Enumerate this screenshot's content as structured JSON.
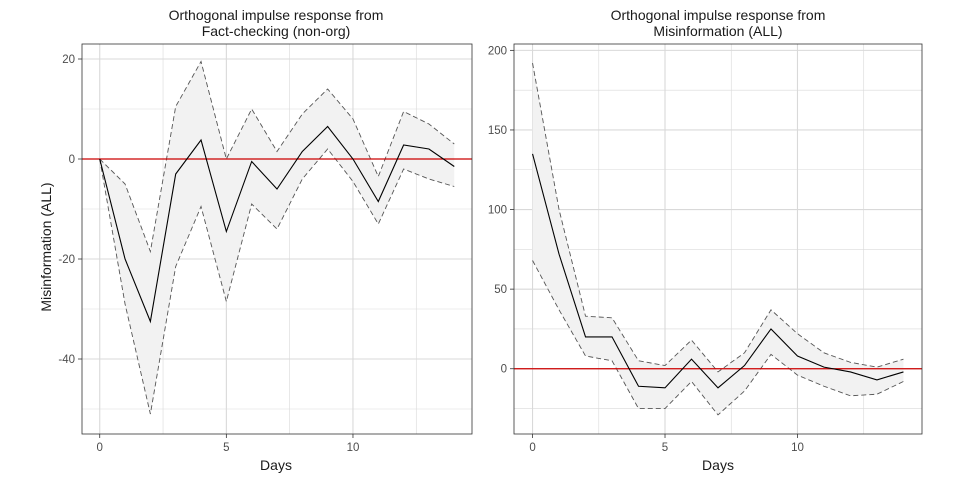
{
  "chart_data": [
    {
      "type": "line",
      "title_lines": [
        "Orthogonal impulse response from",
        "Fact-checking  (non-org)"
      ],
      "xlabel": "Days",
      "ylabel": "Misinformation (ALL)",
      "xlim": [
        -0.7,
        14.7
      ],
      "ylim": [
        -55,
        23
      ],
      "x_ticks": [
        0,
        5,
        10
      ],
      "y_ticks": [
        -40,
        -20,
        0,
        20
      ],
      "y_tick_labels": [
        "-40",
        "-20",
        "0",
        "20"
      ],
      "x": [
        0,
        1,
        2,
        3,
        4,
        5,
        6,
        7,
        8,
        9,
        10,
        11,
        12,
        13,
        14
      ],
      "series": [
        {
          "role": "irf",
          "values": [
            0,
            -20,
            -32.5,
            -3,
            3.8,
            -14.5,
            -0.5,
            -6,
            1.5,
            6.5,
            0,
            -8.5,
            2.8,
            2,
            -1.5
          ]
        },
        {
          "role": "upper",
          "values": [
            0,
            -5,
            -18.5,
            10.5,
            19.5,
            0,
            10,
            1.5,
            9,
            14,
            8,
            -3.5,
            9.5,
            7,
            3
          ]
        },
        {
          "role": "lower",
          "values": [
            0,
            -29,
            -51,
            -21.5,
            -9.5,
            -28.5,
            -9,
            -14,
            -4,
            2,
            -4.5,
            -13,
            -2,
            -4,
            -5.5
          ]
        }
      ],
      "zero_line": 0,
      "grid": true,
      "colors": {
        "irf": "#000000",
        "band": "#f2f2f2",
        "band_edge": "#555555",
        "zero_line": "#cc0000",
        "grid": "#d9d9d9",
        "panel_border": "#333333"
      }
    },
    {
      "type": "line",
      "title_lines": [
        "Orthogonal impulse response from",
        "Misinformation (ALL)"
      ],
      "xlabel": "Days",
      "ylabel": "",
      "xlim": [
        -0.7,
        14.7
      ],
      "ylim": [
        -41,
        204
      ],
      "x_ticks": [
        0,
        5,
        10
      ],
      "y_ticks": [
        0,
        50,
        100,
        150,
        200
      ],
      "y_tick_labels": [
        "0",
        "50",
        "100",
        "150",
        "200"
      ],
      "x": [
        0,
        1,
        2,
        3,
        4,
        5,
        6,
        7,
        8,
        9,
        10,
        11,
        12,
        13,
        14
      ],
      "series": [
        {
          "role": "irf",
          "values": [
            135,
            72,
            20,
            20,
            -11,
            -12,
            6,
            -12,
            2,
            25,
            8,
            1,
            -2,
            -7,
            -2
          ]
        },
        {
          "role": "upper",
          "values": [
            192,
            100,
            33,
            32,
            5,
            2,
            18,
            -2,
            10,
            37,
            22,
            10,
            4,
            1,
            6
          ]
        },
        {
          "role": "lower",
          "values": [
            68,
            37,
            8,
            5,
            -25,
            -25,
            -8,
            -29,
            -14,
            9,
            -4,
            -11,
            -17,
            -16,
            -8
          ]
        }
      ],
      "zero_line": 0,
      "grid": true,
      "colors": {
        "irf": "#000000",
        "band": "#f2f2f2",
        "band_edge": "#555555",
        "zero_line": "#cc0000",
        "grid": "#d9d9d9",
        "panel_border": "#333333"
      }
    }
  ]
}
